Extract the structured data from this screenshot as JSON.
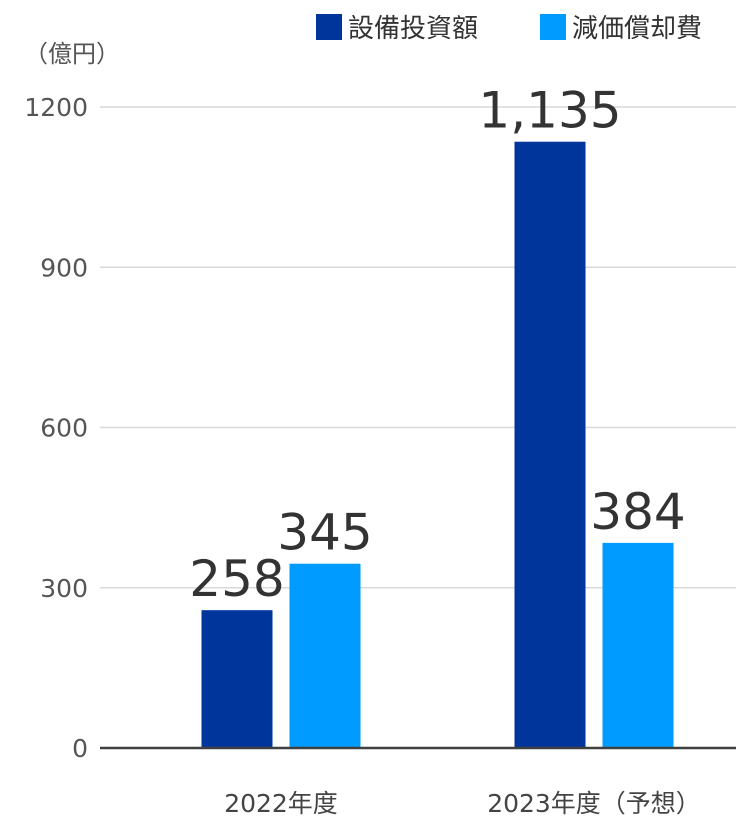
{
  "chart_data": {
    "type": "bar",
    "unit": "（億円）",
    "categories": [
      "2022年度",
      "2023年度（予想）"
    ],
    "series": [
      {
        "name": "設備投資額",
        "values": [
          258,
          1135
        ],
        "labels": [
          "258",
          "1,135"
        ],
        "color": "#00369C"
      },
      {
        "name": "減価償却費",
        "values": [
          345,
          384
        ],
        "labels": [
          "345",
          "384"
        ],
        "color": "#009BFF"
      }
    ],
    "yticks": [
      "0",
      "300",
      "600",
      "900",
      "1200"
    ],
    "ylim": [
      0,
      1200
    ],
    "grid": true,
    "legend": "top-right",
    "colors": {
      "grid": "#d9d9d9",
      "axis": "#404040"
    }
  }
}
